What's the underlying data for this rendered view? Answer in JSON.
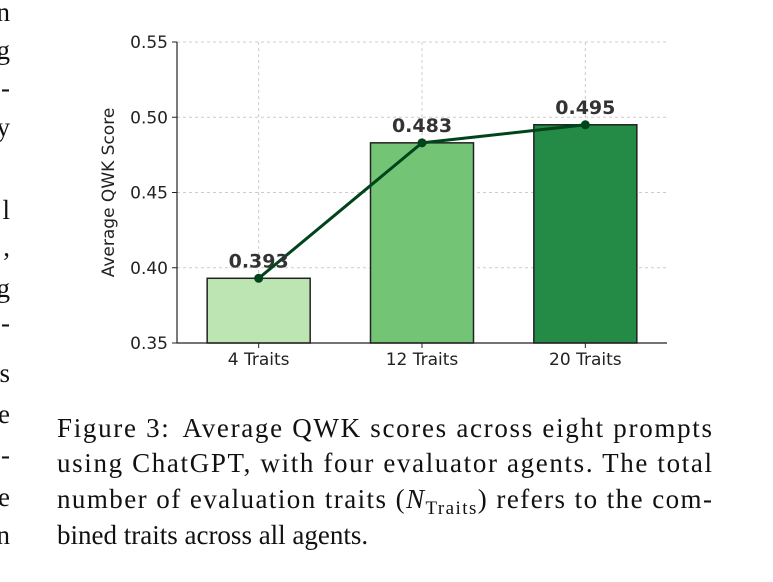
{
  "margin_fragments": [
    "n",
    "g",
    "-",
    "y",
    "l",
    ",",
    "g",
    "-",
    "s",
    "e",
    "-",
    "e",
    "n"
  ],
  "chart_data": {
    "type": "bar",
    "categories": [
      "4 Traits",
      "12 Traits",
      "20 Traits"
    ],
    "values": [
      0.393,
      0.483,
      0.495
    ],
    "colors": [
      "#bde5b4",
      "#74c476",
      "#238b45"
    ],
    "line_color": "#00441b",
    "y_label": "Average QWK Score",
    "ylim": [
      0.35,
      0.55
    ],
    "yticks": [
      0.35,
      {
        "value": 0.4,
        "label": "0.40"
      },
      0.45,
      {
        "value": 0.5,
        "label": "0.50"
      },
      0.55
    ],
    "grid": true
  },
  "caption": {
    "label": "Figure 3:",
    "lines": [
      "Average QWK scores across eight prompts",
      "using ChatGPT, with four evaluator agents. The total",
      [
        "number of evaluation traits (",
        "N",
        "Traits",
        ") refers to the com-"
      ],
      "bined traits across all agents."
    ]
  }
}
